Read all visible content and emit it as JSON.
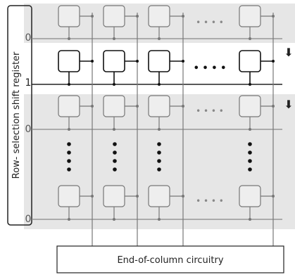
{
  "diagram": {
    "register_label": "Row- selection shift register",
    "row_values": [
      "0",
      "1",
      "0",
      "0"
    ],
    "ellipsis_dots": "• • • •",
    "end_of_column_label": "End-of-column circuitry",
    "shift_arrow_glyph": "⬇",
    "colors": {
      "band": "#e6e6e6",
      "line": "#7a7a7a",
      "dark_line": "#222222",
      "cell_gray": "#777777",
      "cell_active": "#111111"
    }
  }
}
